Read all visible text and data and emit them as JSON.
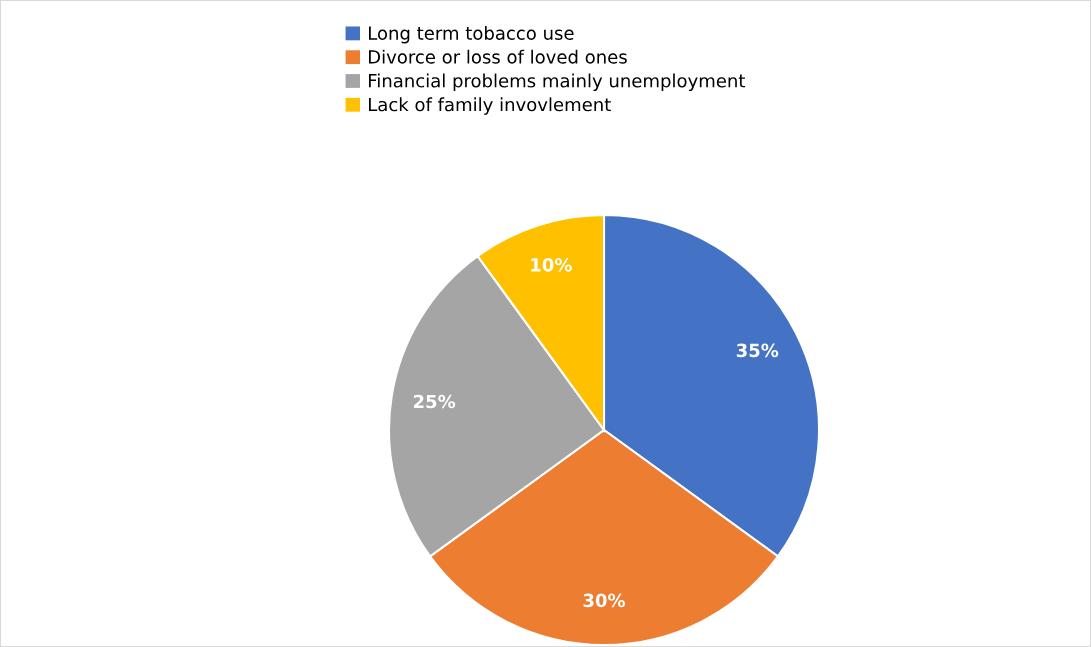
{
  "chart_data": {
    "type": "pie",
    "categories": [
      "Long term tobacco use",
      "Divorce or loss of loved ones",
      "Financial problems mainly unemployment",
      "Lack of family invovlement"
    ],
    "values": [
      35,
      30,
      25,
      10
    ],
    "colors": [
      "#4472c4",
      "#ed7d31",
      "#a5a5a5",
      "#ffc000"
    ],
    "value_labels": [
      "35%",
      "30%",
      "25%",
      "10%"
    ],
    "legend": "top"
  }
}
